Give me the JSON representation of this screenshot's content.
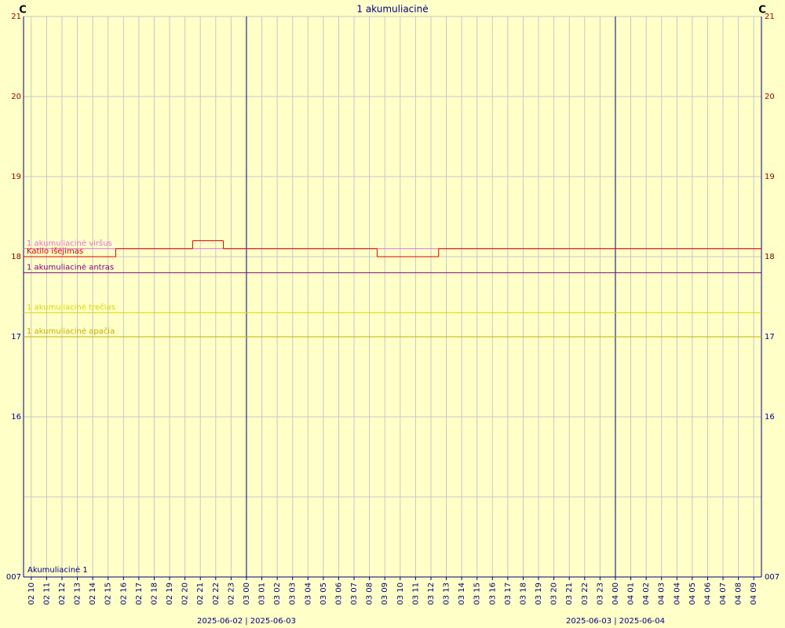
{
  "chart_data": {
    "type": "step",
    "title": "1 akumuliacinė",
    "y_unit_left": "C",
    "y_unit_right": "C",
    "annotation": "Akumuliacinė 1",
    "ylim": [
      14,
      21
    ],
    "yticks": [
      {
        "value": 14,
        "label": "007"
      },
      16,
      17,
      18,
      19,
      20,
      21
    ],
    "ytick_colors": [
      "#000080",
      "#0000a0",
      "#0000a0",
      "#800000",
      "#a00000",
      "#a00000",
      "#a00000"
    ],
    "extra_gridlines": [
      15
    ],
    "grid": true,
    "categories": [
      "02 10",
      "02 11",
      "02 12",
      "02 13",
      "02 14",
      "02 15",
      "02 16",
      "02 17",
      "02 18",
      "02 19",
      "02 20",
      "02 21",
      "02 22",
      "02 23",
      "03 00",
      "03 01",
      "03 02",
      "03 03",
      "03 04",
      "03 05",
      "03 06",
      "03 07",
      "03 08",
      "03 09",
      "03 10",
      "03 11",
      "03 12",
      "03 13",
      "03 14",
      "03 15",
      "03 16",
      "03 17",
      "03 18",
      "03 19",
      "03 20",
      "03 21",
      "03 22",
      "03 23",
      "04 00",
      "04 01",
      "04 02",
      "04 03",
      "04 04",
      "04 05",
      "04 06",
      "04 07",
      "04 08",
      "04 09"
    ],
    "date_labels": [
      "2025-06-02 | 2025-06-03",
      "2025-06-03 | 2025-06-04"
    ],
    "series": [
      {
        "name": "1 akumuliacinė viršus",
        "color": "#e070e0",
        "values": [
          18.1,
          18.1,
          18.1,
          18.1,
          18.1,
          18.1,
          18.1,
          18.1,
          18.1,
          18.1,
          18.1,
          18.1,
          18.1,
          18.1,
          18.1,
          18.1,
          18.1,
          18.1,
          18.1,
          18.1,
          18.1,
          18.1,
          18.1,
          18.1,
          18.1,
          18.1,
          18.1,
          18.1,
          18.1,
          18.1,
          18.1,
          18.1,
          18.1,
          18.1,
          18.1,
          18.1,
          18.1,
          18.1,
          18.1,
          18.1,
          18.1,
          18.1,
          18.1,
          18.1,
          18.1,
          18.1,
          18.1,
          18.1
        ]
      },
      {
        "name": "Katilo išėjimas",
        "color": "#e00000",
        "values": [
          18.0,
          18.0,
          18.0,
          18.0,
          18.0,
          18.0,
          18.1,
          18.1,
          18.1,
          18.1,
          18.1,
          18.2,
          18.2,
          18.1,
          18.1,
          18.1,
          18.1,
          18.1,
          18.1,
          18.1,
          18.1,
          18.1,
          18.1,
          18.0,
          18.0,
          18.0,
          18.0,
          18.1,
          18.1,
          18.1,
          18.1,
          18.1,
          18.1,
          18.1,
          18.1,
          18.1,
          18.1,
          18.1,
          18.1,
          18.1,
          18.1,
          18.1,
          18.1,
          18.1,
          18.1,
          18.1,
          18.1,
          18.1
        ]
      },
      {
        "name": "1 akumuliacinė antras",
        "color": "#800080",
        "values": [
          17.8,
          17.8,
          17.8,
          17.8,
          17.8,
          17.8,
          17.8,
          17.8,
          17.8,
          17.8,
          17.8,
          17.8,
          17.8,
          17.8,
          17.8,
          17.8,
          17.8,
          17.8,
          17.8,
          17.8,
          17.8,
          17.8,
          17.8,
          17.8,
          17.8,
          17.8,
          17.8,
          17.8,
          17.8,
          17.8,
          17.8,
          17.8,
          17.8,
          17.8,
          17.8,
          17.8,
          17.8,
          17.8,
          17.8,
          17.8,
          17.8,
          17.8,
          17.8,
          17.8,
          17.8,
          17.8,
          17.8,
          17.8
        ]
      },
      {
        "name": "1 akumuliacinė trečias",
        "color": "#d8d800",
        "values": [
          17.3,
          17.3,
          17.3,
          17.3,
          17.3,
          17.3,
          17.3,
          17.3,
          17.3,
          17.3,
          17.3,
          17.3,
          17.3,
          17.3,
          17.3,
          17.3,
          17.3,
          17.3,
          17.3,
          17.3,
          17.3,
          17.3,
          17.3,
          17.3,
          17.3,
          17.3,
          17.3,
          17.3,
          17.3,
          17.3,
          17.3,
          17.3,
          17.3,
          17.3,
          17.3,
          17.3,
          17.3,
          17.3,
          17.3,
          17.3,
          17.3,
          17.3,
          17.3,
          17.3,
          17.3,
          17.3,
          17.3,
          17.3
        ]
      },
      {
        "name": "1 akumuliacinė apačia",
        "color": "#c0b000",
        "values": [
          17.0,
          17.0,
          17.0,
          17.0,
          17.0,
          17.0,
          17.0,
          17.0,
          17.0,
          17.0,
          17.0,
          17.0,
          17.0,
          17.0,
          17.0,
          17.0,
          17.0,
          17.0,
          17.0,
          17.0,
          17.0,
          17.0,
          17.0,
          17.0,
          17.0,
          17.0,
          17.0,
          17.0,
          17.0,
          17.0,
          17.0,
          17.0,
          17.0,
          17.0,
          17.0,
          17.0,
          17.0,
          17.0,
          17.0,
          17.0,
          17.0,
          17.0,
          17.0,
          17.0,
          17.0,
          17.0,
          17.0,
          17.0
        ]
      }
    ]
  }
}
